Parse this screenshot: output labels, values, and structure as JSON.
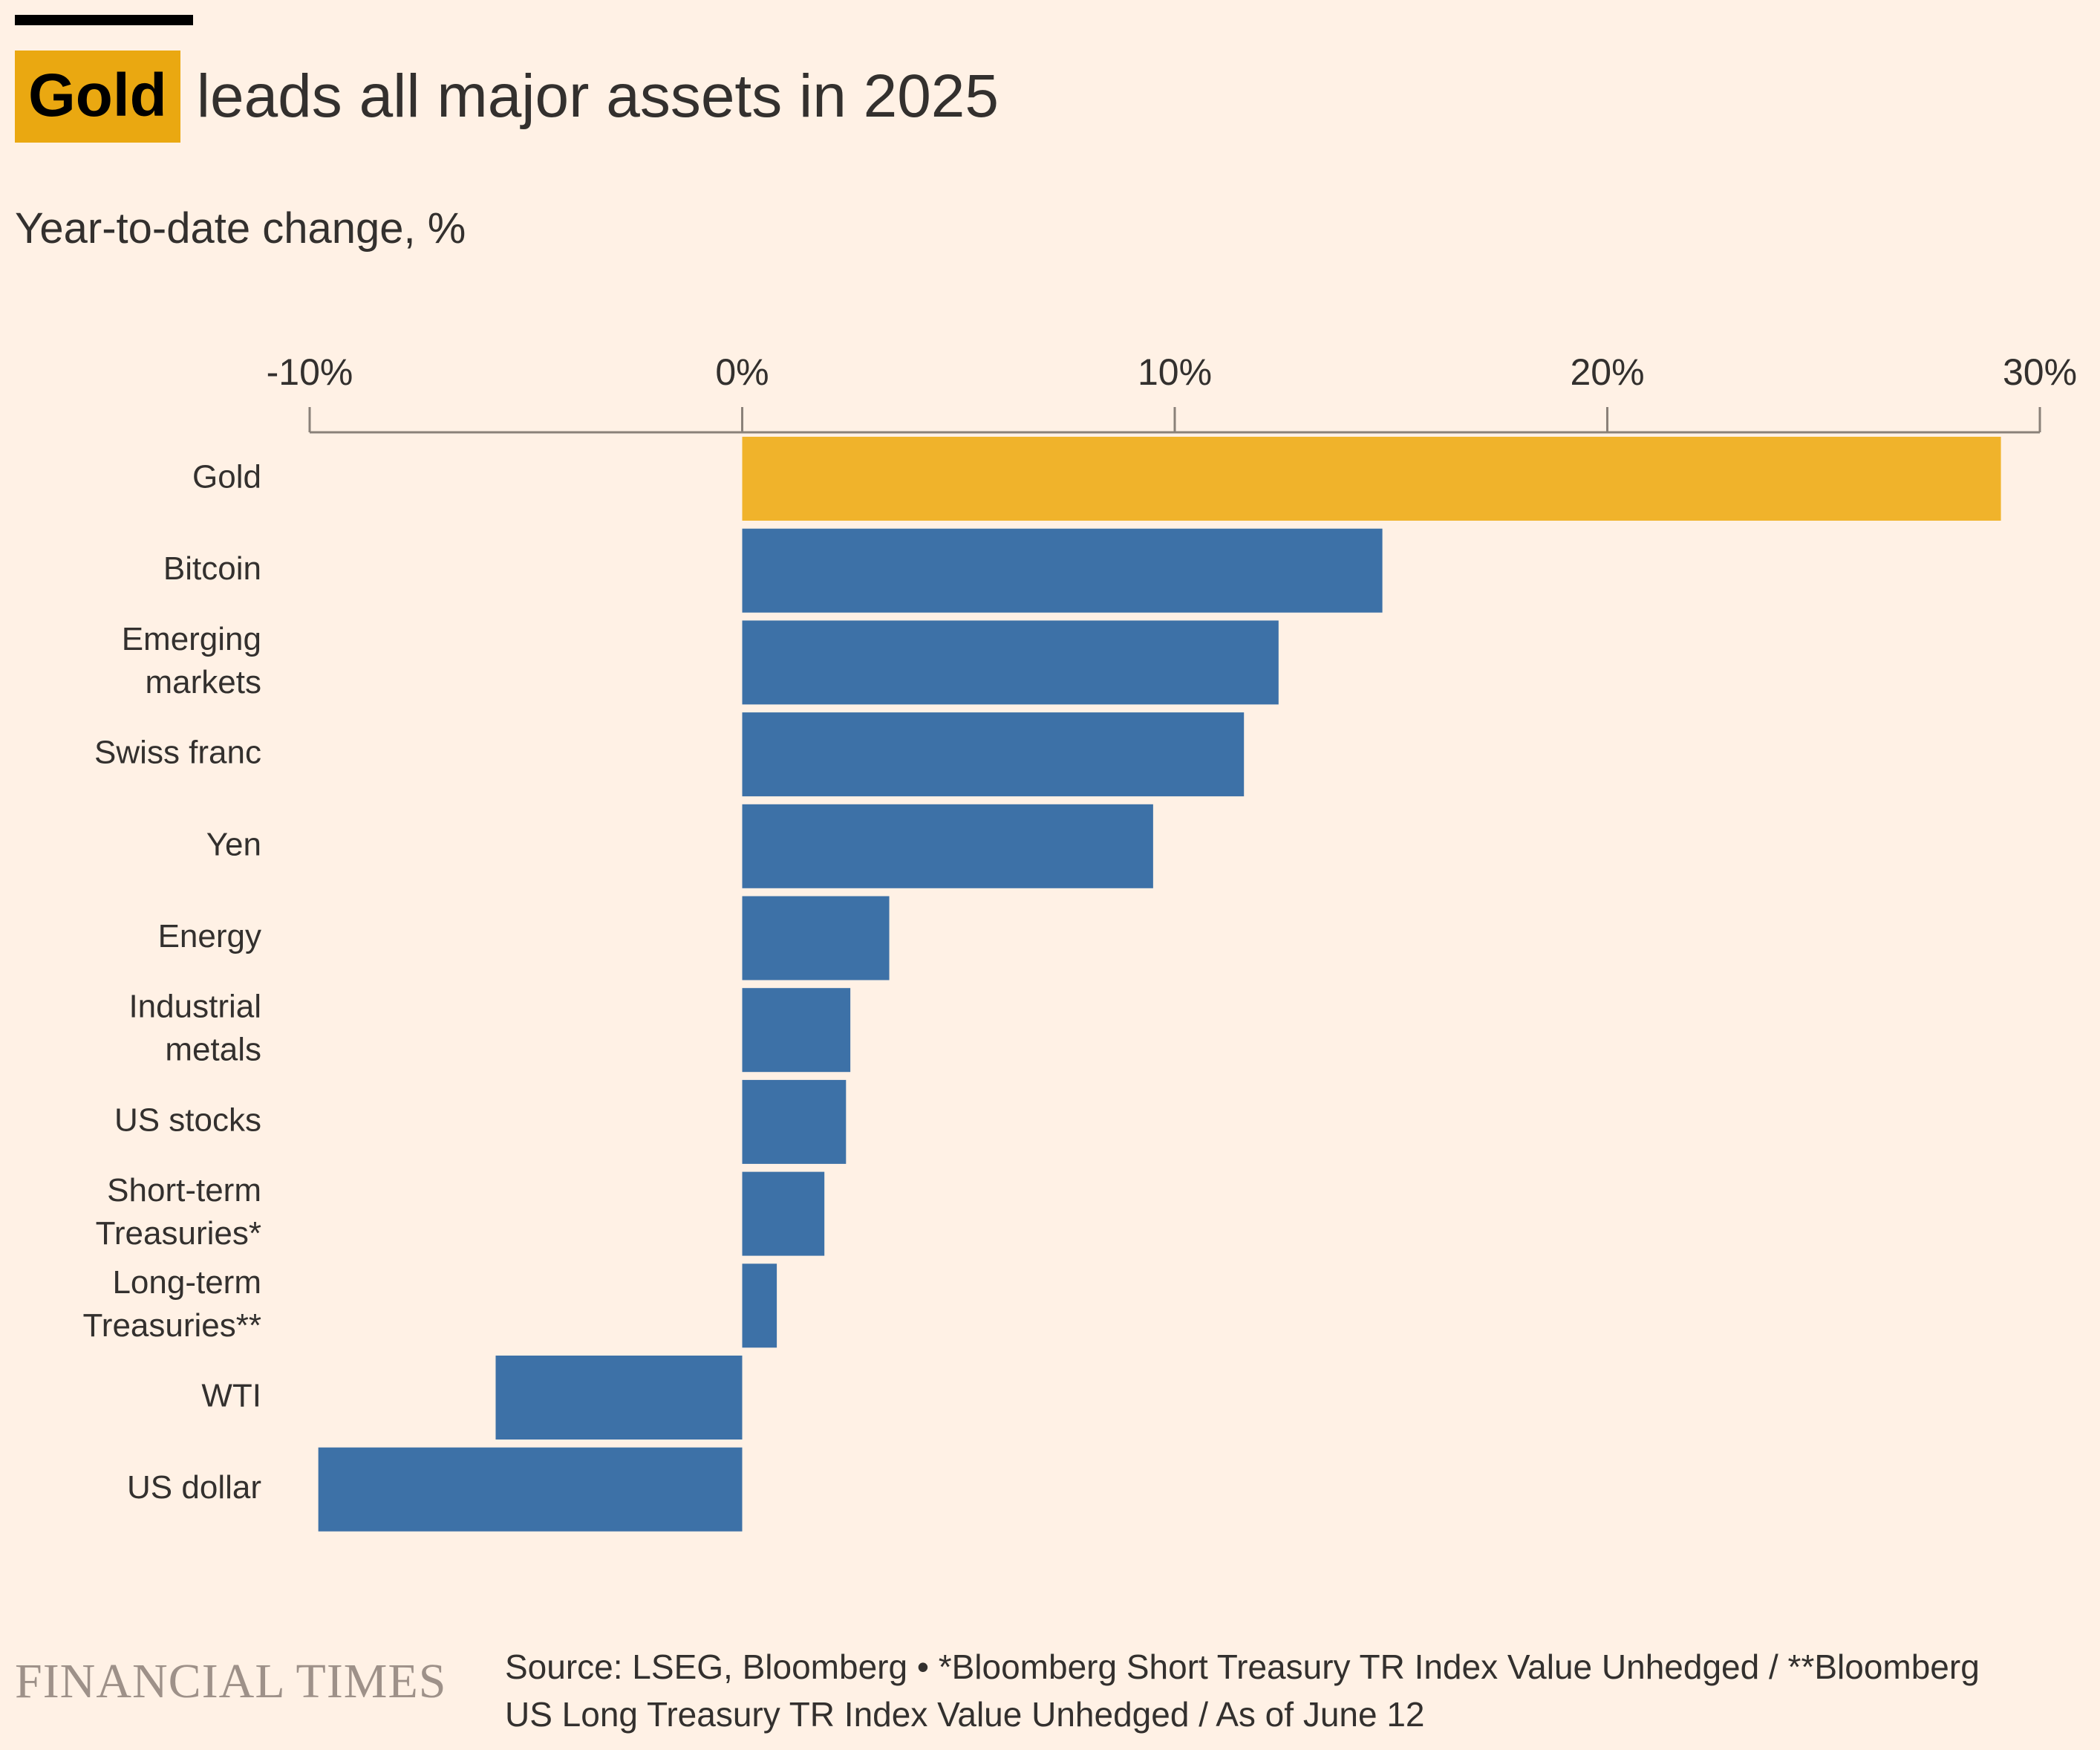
{
  "title": {
    "highlight": "Gold",
    "rest": "leads all major assets in 2025"
  },
  "subtitle": "Year-to-date change, %",
  "colors": {
    "background": "#fff1e5",
    "highlight_bar": "#f0b32b",
    "bar": "#3d71a7",
    "title_highlight_bg": "#eaa811",
    "axis": "#8a8179",
    "text": "#33302e",
    "brand": "#9e9189"
  },
  "chart_data": {
    "type": "bar",
    "orientation": "horizontal",
    "categories": [
      [
        "Gold"
      ],
      [
        "Bitcoin"
      ],
      [
        "Emerging",
        "markets"
      ],
      [
        "Swiss franc"
      ],
      [
        "Yen"
      ],
      [
        "Energy"
      ],
      [
        "Industrial",
        "metals"
      ],
      [
        "US stocks"
      ],
      [
        "Short-term",
        "Treasuries*"
      ],
      [
        "Long-term",
        "Treasuries**"
      ],
      [
        "WTI"
      ],
      [
        "US dollar"
      ]
    ],
    "values": [
      29.1,
      14.8,
      12.4,
      11.6,
      9.5,
      3.4,
      2.5,
      2.4,
      1.9,
      0.8,
      -5.7,
      -9.8
    ],
    "highlight_index": 0,
    "xlim": [
      -10,
      30
    ],
    "xticks": [
      -10,
      0,
      10,
      20,
      30
    ],
    "xtick_labels": [
      "-10%",
      "0%",
      "10%",
      "20%",
      "30%"
    ],
    "xaxis_position": "top",
    "grid": false,
    "legend": "none"
  },
  "footer": {
    "brand": "FINANCIAL TIMES",
    "source_lines": [
      "Source: LSEG, Bloomberg • *Bloomberg Short Treasury TR Index Value Unhedged / **Bloomberg",
      "US Long Treasury TR Index Value Unhedged / As of June 12"
    ]
  }
}
